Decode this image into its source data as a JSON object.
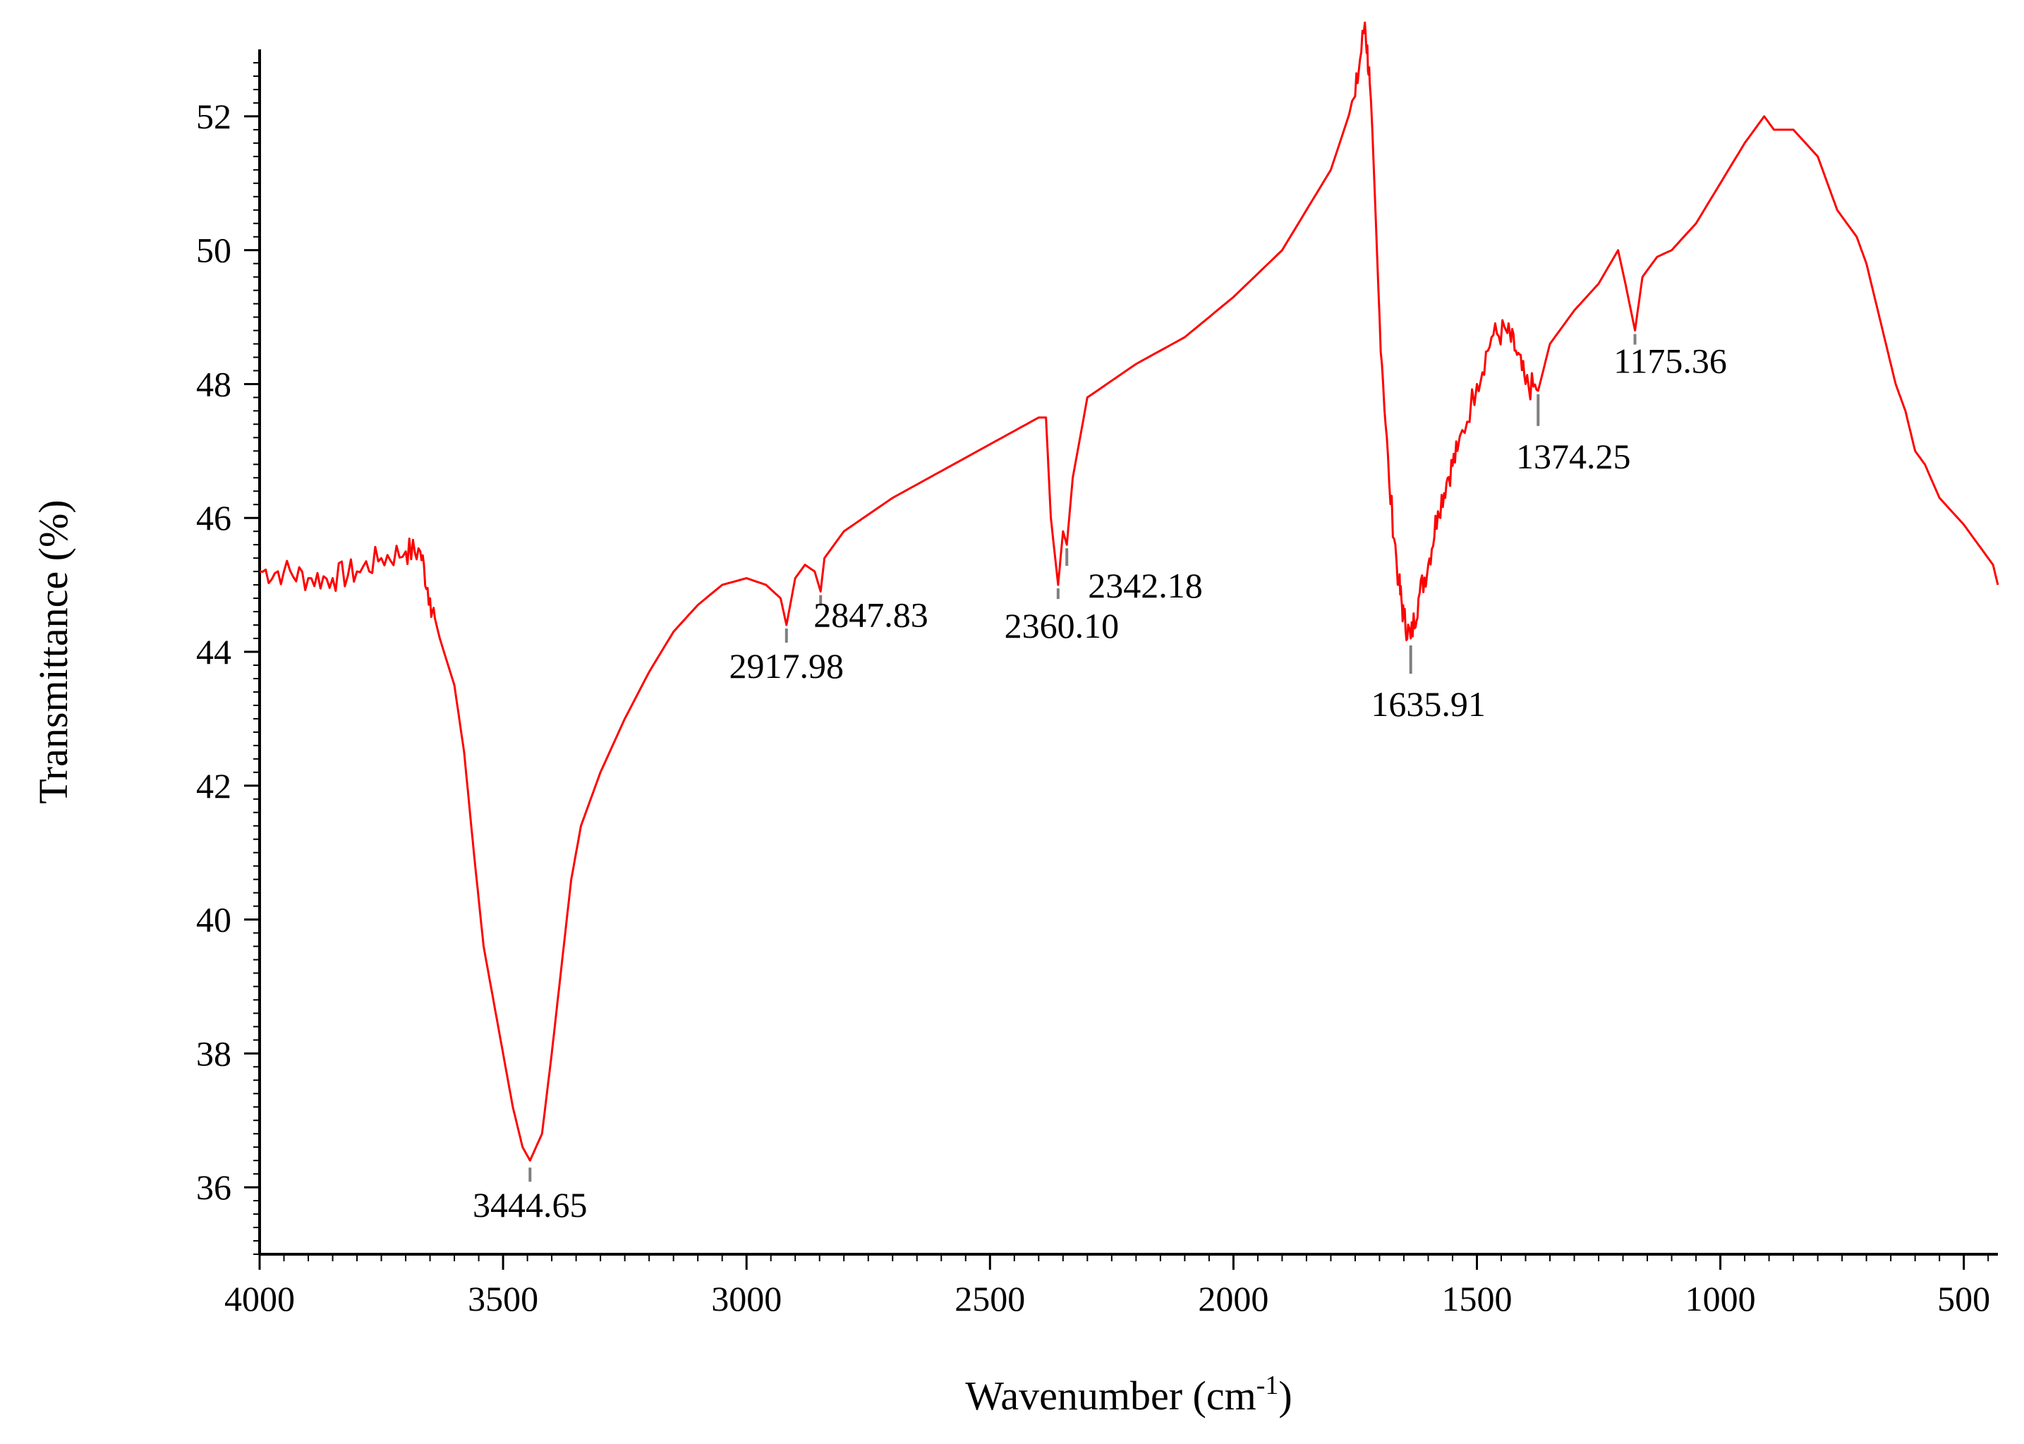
{
  "chart_data": {
    "type": "line",
    "title": "",
    "xlabel": "Wavenumber (cm",
    "xlabel_sup": "-1",
    "xlabel_end": ")",
    "ylabel": "Transmittance (%)",
    "xlim": [
      4000,
      430
    ],
    "ylim": [
      35,
      53
    ],
    "x_reversed": true,
    "grid": false,
    "x_ticks": [
      "4000",
      "3500",
      "3000",
      "2500",
      "2000",
      "1500",
      "1000",
      "500"
    ],
    "x_tick_values": [
      4000,
      3500,
      3000,
      2500,
      2000,
      1500,
      1000,
      500
    ],
    "y_ticks": [
      "36",
      "38",
      "40",
      "42",
      "44",
      "46",
      "48",
      "50",
      "52"
    ],
    "y_tick_values": [
      36,
      38,
      40,
      42,
      44,
      46,
      48,
      50,
      52
    ],
    "series": [
      {
        "color": "#ff0000",
        "points": [
          [
            4000,
            45.2
          ],
          [
            3950,
            45.2
          ],
          [
            3900,
            45.1
          ],
          [
            3850,
            45.1
          ],
          [
            3800,
            45.2
          ],
          [
            3750,
            45.4
          ],
          [
            3700,
            45.5
          ],
          [
            3670,
            45.5
          ],
          [
            3650,
            44.8
          ],
          [
            3630,
            44.2
          ],
          [
            3600,
            43.5
          ],
          [
            3580,
            42.5
          ],
          [
            3560,
            41.0
          ],
          [
            3540,
            39.6
          ],
          [
            3520,
            38.8
          ],
          [
            3500,
            38.0
          ],
          [
            3480,
            37.2
          ],
          [
            3460,
            36.6
          ],
          [
            3444.65,
            36.4
          ],
          [
            3420,
            36.8
          ],
          [
            3400,
            38.0
          ],
          [
            3380,
            39.3
          ],
          [
            3360,
            40.6
          ],
          [
            3340,
            41.4
          ],
          [
            3300,
            42.2
          ],
          [
            3250,
            43.0
          ],
          [
            3200,
            43.7
          ],
          [
            3150,
            44.3
          ],
          [
            3100,
            44.7
          ],
          [
            3050,
            45.0
          ],
          [
            3000,
            45.1
          ],
          [
            2960,
            45.0
          ],
          [
            2930,
            44.8
          ],
          [
            2917.98,
            44.4
          ],
          [
            2900,
            45.1
          ],
          [
            2880,
            45.3
          ],
          [
            2860,
            45.2
          ],
          [
            2847.83,
            44.9
          ],
          [
            2840,
            45.4
          ],
          [
            2800,
            45.8
          ],
          [
            2700,
            46.3
          ],
          [
            2600,
            46.7
          ],
          [
            2500,
            47.1
          ],
          [
            2400,
            47.5
          ],
          [
            2385,
            47.5
          ],
          [
            2375,
            46.0
          ],
          [
            2360.1,
            45.0
          ],
          [
            2350,
            45.8
          ],
          [
            2342.18,
            45.6
          ],
          [
            2330,
            46.6
          ],
          [
            2300,
            47.8
          ],
          [
            2200,
            48.3
          ],
          [
            2100,
            48.7
          ],
          [
            2000,
            49.3
          ],
          [
            1900,
            50.0
          ],
          [
            1800,
            51.2
          ],
          [
            1750,
            52.3
          ],
          [
            1730,
            53.4
          ],
          [
            1720,
            52.5
          ],
          [
            1700,
            49.0
          ],
          [
            1680,
            46.5
          ],
          [
            1660,
            45.0
          ],
          [
            1650,
            44.5
          ],
          [
            1635.91,
            44.2
          ],
          [
            1620,
            44.8
          ],
          [
            1600,
            45.3
          ],
          [
            1580,
            46.1
          ],
          [
            1560,
            46.6
          ],
          [
            1540,
            47.0
          ],
          [
            1500,
            48.0
          ],
          [
            1470,
            48.7
          ],
          [
            1440,
            48.8
          ],
          [
            1420,
            48.5
          ],
          [
            1400,
            48.0
          ],
          [
            1374.25,
            47.9
          ],
          [
            1350,
            48.6
          ],
          [
            1300,
            49.1
          ],
          [
            1250,
            49.5
          ],
          [
            1210,
            50.0
          ],
          [
            1195,
            49.5
          ],
          [
            1175.36,
            48.8
          ],
          [
            1160,
            49.6
          ],
          [
            1130,
            49.9
          ],
          [
            1100,
            50.0
          ],
          [
            1050,
            50.4
          ],
          [
            1000,
            51.0
          ],
          [
            950,
            51.6
          ],
          [
            910,
            52.0
          ],
          [
            890,
            51.8
          ],
          [
            850,
            51.8
          ],
          [
            800,
            51.4
          ],
          [
            760,
            50.6
          ],
          [
            720,
            50.2
          ],
          [
            700,
            49.8
          ],
          [
            680,
            49.2
          ],
          [
            660,
            48.6
          ],
          [
            640,
            48.0
          ],
          [
            620,
            47.6
          ],
          [
            600,
            47.0
          ],
          [
            580,
            46.8
          ],
          [
            550,
            46.3
          ],
          [
            500,
            45.9
          ],
          [
            470,
            45.6
          ],
          [
            440,
            45.3
          ],
          [
            430,
            45.0
          ]
        ]
      }
    ],
    "annotations": [
      {
        "label": "3444.65",
        "x": 3444.65,
        "y": 36.4
      },
      {
        "label": "2917.98",
        "x": 2917.98,
        "y": 44.4
      },
      {
        "label": "2847.83",
        "x": 2847.83,
        "y": 44.9
      },
      {
        "label": "2360.10",
        "x": 2360.1,
        "y": 45.0
      },
      {
        "label": "2342.18",
        "x": 2342.18,
        "y": 45.6
      },
      {
        "label": "1635.91",
        "x": 1635.91,
        "y": 44.2
      },
      {
        "label": "1374.25",
        "x": 1374.25,
        "y": 47.9
      },
      {
        "label": "1175.36",
        "x": 1175.36,
        "y": 48.8
      }
    ]
  }
}
